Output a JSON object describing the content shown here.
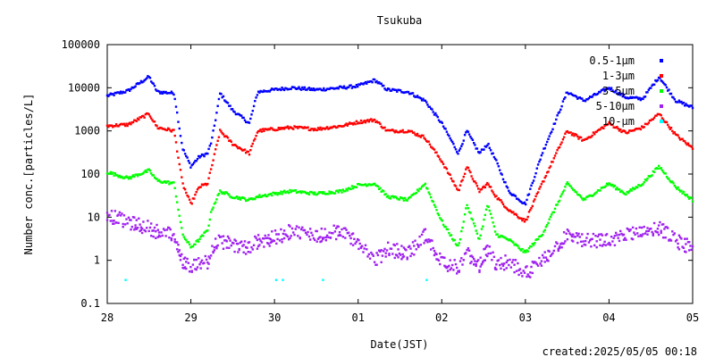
{
  "chart_data": {
    "type": "scatter",
    "title": "Tsukuba",
    "xlabel": "Date(JST)",
    "ylabel": "Number conc.[particles/L]",
    "yscale": "log",
    "ylim": [
      0.1,
      100000
    ],
    "ytick_labels": [
      "0.1",
      "1",
      "10",
      "100",
      "1000",
      "10000",
      "100000"
    ],
    "xlim": [
      0,
      7
    ],
    "xtick_labels": [
      "28",
      "29",
      "30",
      "01",
      "02",
      "03",
      "04",
      "05"
    ],
    "grid": false,
    "legend_position": "top-right",
    "footer": "created:2025/05/05 00:18",
    "x_unit": "days from Apr 28 00:00 JST",
    "series": [
      {
        "name": "0.5-1μm",
        "color": "#0000ff",
        "x": [
          0,
          0.25,
          0.5,
          0.6,
          0.8,
          0.9,
          1.0,
          1.1,
          1.2,
          1.25,
          1.35,
          1.5,
          1.7,
          1.8,
          2.0,
          2.2,
          2.5,
          2.8,
          3.0,
          3.2,
          3.35,
          3.6,
          3.8,
          4.0,
          4.2,
          4.3,
          4.45,
          4.55,
          4.65,
          4.8,
          5.0,
          5.2,
          5.35,
          5.5,
          5.7,
          6.0,
          6.2,
          6.4,
          6.6,
          6.8,
          7.0
        ],
        "y": [
          6500,
          8500,
          18000,
          8000,
          7500,
          400,
          150,
          250,
          300,
          600,
          7500,
          3000,
          1500,
          8000,
          9000,
          10000,
          9000,
          10000,
          11000,
          15000,
          9000,
          8000,
          5000,
          1500,
          300,
          1000,
          300,
          500,
          200,
          40,
          20,
          300,
          1500,
          8000,
          5000,
          10000,
          6000,
          5500,
          18000,
          5000,
          3500
        ]
      },
      {
        "name": "1-3μm",
        "color": "#ff0000",
        "x": [
          0,
          0.25,
          0.5,
          0.6,
          0.8,
          0.9,
          1.0,
          1.1,
          1.2,
          1.25,
          1.35,
          1.5,
          1.7,
          1.8,
          2.0,
          2.2,
          2.5,
          2.8,
          3.0,
          3.2,
          3.35,
          3.6,
          3.8,
          4.0,
          4.2,
          4.3,
          4.45,
          4.55,
          4.65,
          4.8,
          5.0,
          5.2,
          5.35,
          5.5,
          5.7,
          6.0,
          6.2,
          6.4,
          6.6,
          6.8,
          7.0
        ],
        "y": [
          1300,
          1400,
          2500,
          1200,
          1000,
          60,
          20,
          50,
          60,
          150,
          1000,
          500,
          300,
          1000,
          1100,
          1200,
          1100,
          1300,
          1600,
          1800,
          1000,
          1000,
          700,
          200,
          40,
          150,
          40,
          60,
          30,
          15,
          8,
          60,
          250,
          1000,
          600,
          1500,
          900,
          1200,
          2500,
          800,
          400
        ]
      },
      {
        "name": "3-5μm",
        "color": "#00ff00",
        "x": [
          0,
          0.25,
          0.5,
          0.6,
          0.8,
          0.9,
          1.0,
          1.1,
          1.2,
          1.25,
          1.35,
          1.5,
          1.7,
          1.8,
          2.0,
          2.2,
          2.5,
          2.8,
          3.0,
          3.2,
          3.35,
          3.6,
          3.8,
          4.0,
          4.2,
          4.3,
          4.45,
          4.55,
          4.65,
          4.8,
          5.0,
          5.2,
          5.35,
          5.5,
          5.7,
          6.0,
          6.2,
          6.4,
          6.6,
          6.8,
          7.0
        ],
        "y": [
          110,
          80,
          120,
          70,
          60,
          4,
          2,
          3,
          5,
          15,
          40,
          30,
          25,
          30,
          35,
          40,
          35,
          40,
          55,
          60,
          30,
          25,
          60,
          8,
          2,
          20,
          3,
          20,
          4,
          3,
          1.5,
          4,
          15,
          60,
          25,
          60,
          35,
          60,
          150,
          50,
          25
        ]
      },
      {
        "name": "5-10μm",
        "color": "#a020f0",
        "x": [
          0,
          0.25,
          0.5,
          0.6,
          0.8,
          0.9,
          1.0,
          1.1,
          1.2,
          1.25,
          1.35,
          1.5,
          1.7,
          1.8,
          2.0,
          2.2,
          2.5,
          2.8,
          3.0,
          3.2,
          3.35,
          3.6,
          3.8,
          4.0,
          4.2,
          4.3,
          4.45,
          4.55,
          4.65,
          4.8,
          5.0,
          5.2,
          5.35,
          5.5,
          5.7,
          6.0,
          6.2,
          6.4,
          6.6,
          6.8,
          7.0
        ],
        "y": [
          12,
          8,
          6,
          5,
          4,
          1,
          0.7,
          1,
          1,
          2,
          3,
          2.5,
          2,
          3,
          3.5,
          5,
          4,
          5,
          3,
          1,
          2,
          1.5,
          4,
          1,
          0.7,
          1.5,
          0.8,
          2,
          0.8,
          1,
          0.5,
          1,
          2,
          4,
          3,
          3,
          4,
          5,
          6,
          3,
          2
        ]
      },
      {
        "name": "10-μm",
        "color": "#00ffff",
        "x": [
          0.22,
          2.02,
          2.1,
          2.58,
          3.82
        ],
        "y": [
          0.35,
          0.35,
          0.35,
          0.35,
          0.35
        ]
      }
    ]
  }
}
